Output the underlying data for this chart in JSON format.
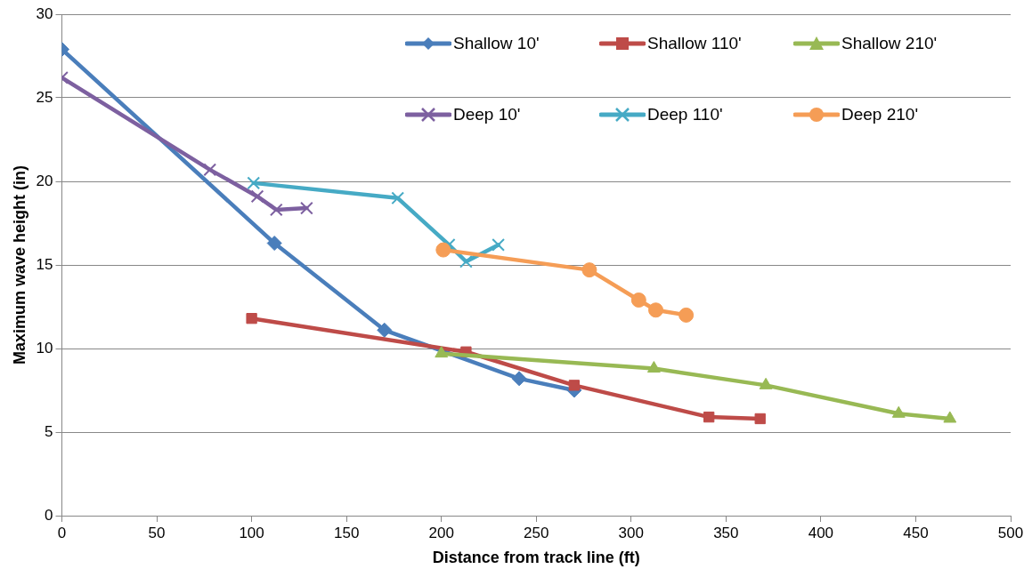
{
  "chart_data": {
    "type": "line",
    "xlabel": "Distance from track line (ft)",
    "ylabel": "Maximum wave height (in)",
    "xlim": [
      0,
      500
    ],
    "xticks": [
      0,
      50,
      100,
      150,
      200,
      250,
      300,
      350,
      400,
      450,
      500
    ],
    "ylim": [
      0,
      30
    ],
    "yticks": [
      0,
      5,
      10,
      15,
      20,
      25,
      30
    ],
    "grid": "y",
    "legend": "top right",
    "line_style": "solid",
    "series": [
      {
        "name": "Shallow 10'",
        "color": "#4a7ebb",
        "marker": "diamond",
        "x": [
          0,
          112,
          170,
          241,
          270
        ],
        "values": [
          27.9,
          16.3,
          11.1,
          8.2,
          7.5
        ]
      },
      {
        "name": "Shallow 110'",
        "color": "#be4b48",
        "marker": "square",
        "x": [
          100,
          213,
          270,
          341,
          368
        ],
        "values": [
          11.8,
          9.8,
          7.8,
          5.9,
          5.8
        ]
      },
      {
        "name": "Shallow 210'",
        "color": "#98b954",
        "marker": "triangle",
        "x": [
          200,
          312,
          371,
          441,
          468
        ],
        "values": [
          9.7,
          8.8,
          7.8,
          6.1,
          5.8
        ]
      },
      {
        "name": "Deep 10'",
        "color": "#7d60a0",
        "marker": "cross",
        "x": [
          0,
          78,
          103,
          113,
          129
        ],
        "values": [
          26.2,
          20.7,
          19.1,
          18.3,
          18.4
        ]
      },
      {
        "name": "Deep 110'",
        "color": "#46aac5",
        "marker": "cross",
        "x": [
          101,
          177,
          204,
          213,
          230
        ],
        "values": [
          19.9,
          19.0,
          16.2,
          15.2,
          16.2
        ]
      },
      {
        "name": "Deep 210'",
        "color": "#f59d56",
        "marker": "circle",
        "x": [
          201,
          278,
          304,
          313,
          329
        ],
        "values": [
          15.9,
          14.7,
          12.9,
          12.3,
          12.0
        ]
      }
    ]
  }
}
